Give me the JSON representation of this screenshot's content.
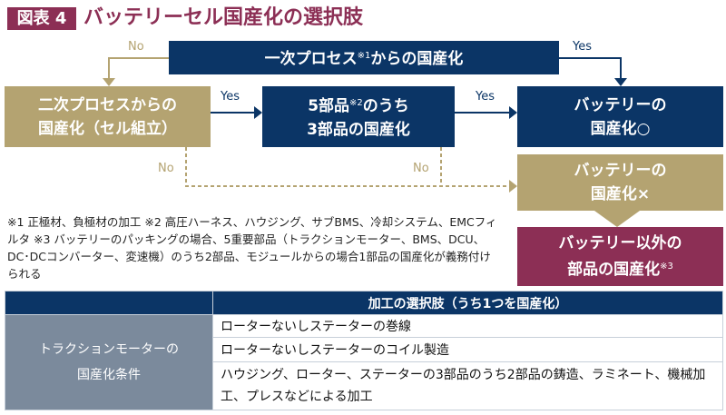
{
  "header": {
    "badge": "図表 4",
    "title": "バッテリーセル国産化の選択肢"
  },
  "flow": {
    "top": {
      "text": "一次プロセス",
      "sup": "※1",
      "text2": "からの国産化"
    },
    "left": {
      "line1": "二次プロセスからの",
      "line2": "国産化（セル組立）"
    },
    "mid": {
      "line1a": "5部品",
      "sup": "※2",
      "line1b": "のうち",
      "line2": "3部品の国産化"
    },
    "right": {
      "line1": "バッテリーの",
      "line2": "国産化○"
    },
    "fail": {
      "line1": "バッテリーの",
      "line2": "国産化×"
    },
    "other": {
      "line1": "バッテリー以外の",
      "line2": "部品の国産化",
      "sup": "※3"
    },
    "labels": {
      "no": "No",
      "yes": "Yes"
    },
    "colors": {
      "navy": "#0b3566",
      "tan": "#b4a371",
      "crimson": "#8c2f55",
      "gray": "#7b8a9c"
    }
  },
  "notes": "※1 正極材、負極材の加工 ※2 高圧ハーネス、ハウジング、サブBMS、冷却システム、EMCフィルタ ※3 バッテリーのパッキングの場合、5重要部品（トラクションモーター、BMS、DCU、DC･DCコンバーター、変速機）のうち2部品、モジュールからの場合1部品の国産化が義務付けられる",
  "table": {
    "header": "加工の選択肢（うち1つを国産化）",
    "row_header_line1": "トラクションモーターの",
    "row_header_line2": "国産化条件",
    "rows": [
      "ローターないしステーターの巻線",
      "ローターないしステーターのコイル製造",
      "ハウジング、ローター、ステーターの3部品のうち2部品の鋳造、ラミネート、機械加工、プレスなどによる加工"
    ]
  }
}
